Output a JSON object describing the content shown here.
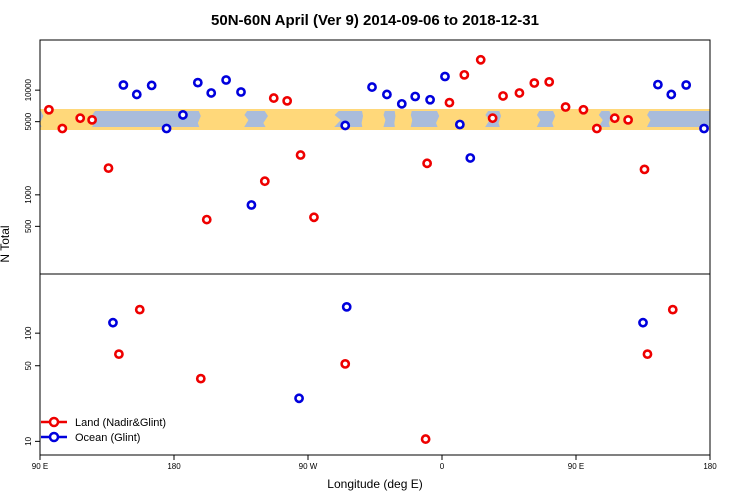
{
  "chart_data": {
    "type": "scatter",
    "title": "50N-60N April (Ver 9)   2014-09-06 to 2018-12-31",
    "xlabel": "Longitude (deg E)",
    "ylabel": "N Total",
    "x_axis": {
      "ticks": [
        90,
        180,
        270,
        360,
        450,
        540
      ],
      "tick_labels": [
        "90 E",
        "180",
        "90 W",
        "0",
        "90 E",
        "180"
      ],
      "range": [
        90,
        540
      ]
    },
    "legend": {
      "position": "bottom-left",
      "entries": [
        {
          "label": "Land (Nadir&Glint)",
          "color": "#ee0000"
        },
        {
          "label": "Ocean (Glint)",
          "color": "#0000dd"
        }
      ]
    },
    "panels": [
      {
        "name": "upper",
        "scale": "log",
        "ylim": [
          200,
          27000
        ],
        "yticks": [
          500,
          1000,
          5000,
          10000
        ],
        "ytick_labels": [
          "500",
          "1000",
          "5000",
          "10000"
        ],
        "map_band": true,
        "series": [
          {
            "name": "Land (Nadir&Glint)",
            "color": "#ee0000",
            "points": [
              {
                "lon": 96,
                "n": 6500
              },
              {
                "lon": 105,
                "n": 4300
              },
              {
                "lon": 117,
                "n": 5400
              },
              {
                "lon": 125,
                "n": 5200
              },
              {
                "lon": 136,
                "n": 1800
              },
              {
                "lon": 202,
                "n": 580
              },
              {
                "lon": 241,
                "n": 1350
              },
              {
                "lon": 247,
                "n": 8400
              },
              {
                "lon": 256,
                "n": 7900
              },
              {
                "lon": 265,
                "n": 2400
              },
              {
                "lon": 274,
                "n": 610
              },
              {
                "lon": 350,
                "n": 2000
              },
              {
                "lon": 365,
                "n": 7600
              },
              {
                "lon": 375,
                "n": 14000
              },
              {
                "lon": 386,
                "n": 19500
              },
              {
                "lon": 394,
                "n": 5400
              },
              {
                "lon": 401,
                "n": 8800
              },
              {
                "lon": 412,
                "n": 9400
              },
              {
                "lon": 422,
                "n": 11700
              },
              {
                "lon": 432,
                "n": 12000
              },
              {
                "lon": 443,
                "n": 6900
              },
              {
                "lon": 455,
                "n": 6500
              },
              {
                "lon": 464,
                "n": 4300
              },
              {
                "lon": 476,
                "n": 5400
              },
              {
                "lon": 485,
                "n": 5200
              },
              {
                "lon": 496,
                "n": 1750
              }
            ]
          },
          {
            "name": "Ocean (Glint)",
            "color": "#0000dd",
            "points": [
              {
                "lon": 146,
                "n": 11200
              },
              {
                "lon": 155,
                "n": 9100
              },
              {
                "lon": 165,
                "n": 11100
              },
              {
                "lon": 175,
                "n": 4300
              },
              {
                "lon": 186,
                "n": 5800
              },
              {
                "lon": 196,
                "n": 11800
              },
              {
                "lon": 205,
                "n": 9400
              },
              {
                "lon": 215,
                "n": 12500
              },
              {
                "lon": 225,
                "n": 9600
              },
              {
                "lon": 232,
                "n": 800
              },
              {
                "lon": 295,
                "n": 4600
              },
              {
                "lon": 313,
                "n": 10700
              },
              {
                "lon": 323,
                "n": 9100
              },
              {
                "lon": 333,
                "n": 7400
              },
              {
                "lon": 342,
                "n": 8700
              },
              {
                "lon": 352,
                "n": 8100
              },
              {
                "lon": 362,
                "n": 13500
              },
              {
                "lon": 372,
                "n": 4700
              },
              {
                "lon": 379,
                "n": 2250
              },
              {
                "lon": 505,
                "n": 11300
              },
              {
                "lon": 514,
                "n": 9100
              },
              {
                "lon": 524,
                "n": 11200
              },
              {
                "lon": 536,
                "n": 4300
              }
            ]
          }
        ]
      },
      {
        "name": "lower",
        "scale": "log",
        "ylim": [
          8.5,
          310
        ],
        "yticks": [
          10,
          50,
          100
        ],
        "ytick_labels": [
          "10",
          "50",
          "100"
        ],
        "series": [
          {
            "name": "Land (Nadir&Glint)",
            "color": "#ee0000",
            "points": [
              {
                "lon": 143,
                "n": 64
              },
              {
                "lon": 157,
                "n": 165
              },
              {
                "lon": 198,
                "n": 38
              },
              {
                "lon": 295,
                "n": 52
              },
              {
                "lon": 349,
                "n": 10.5
              },
              {
                "lon": 498,
                "n": 64
              },
              {
                "lon": 515,
                "n": 165
              }
            ]
          },
          {
            "name": "Ocean (Glint)",
            "color": "#0000dd",
            "points": [
              {
                "lon": 139,
                "n": 125
              },
              {
                "lon": 264,
                "n": 25
              },
              {
                "lon": 296,
                "n": 175
              },
              {
                "lon": 495,
                "n": 125
              }
            ]
          }
        ]
      }
    ]
  }
}
